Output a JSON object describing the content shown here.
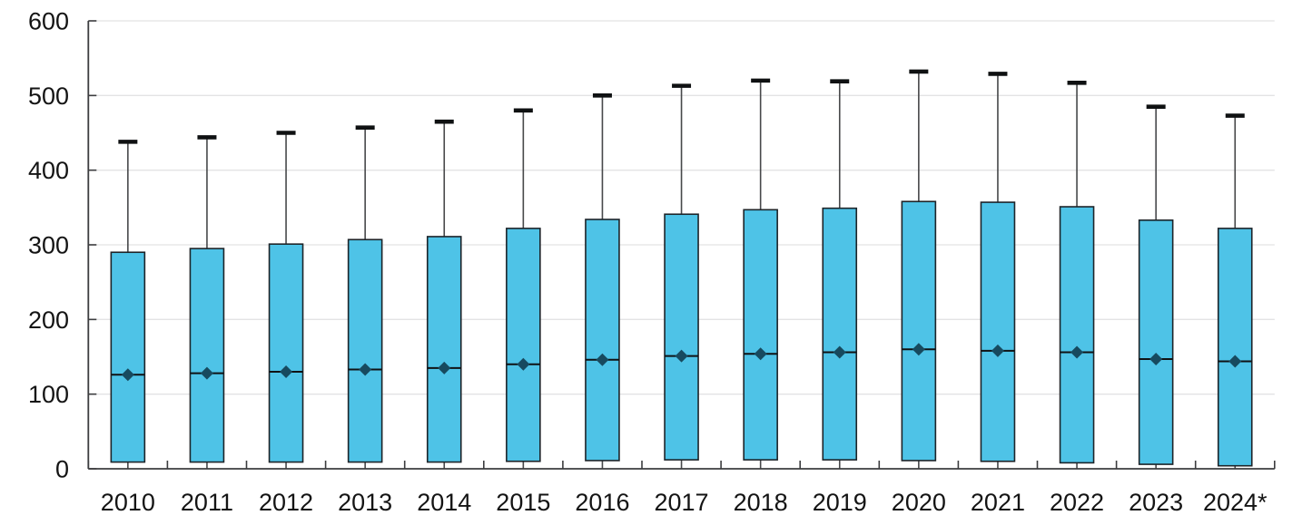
{
  "page": {
    "background": "#ffffff"
  },
  "chart_data": {
    "type": "boxplot",
    "title": "",
    "xlabel": "",
    "ylabel": "",
    "ylim": [
      0,
      600
    ],
    "yticks": [
      0,
      100,
      200,
      300,
      400,
      500,
      600
    ],
    "grid": "horizontal",
    "legend": "none",
    "median_marker": "diamond",
    "categories": [
      "2010",
      "2011",
      "2012",
      "2013",
      "2014",
      "2015",
      "2016",
      "2017",
      "2018",
      "2019",
      "2020",
      "2021",
      "2022",
      "2023",
      "2024*"
    ],
    "points": [
      {
        "category": "2010",
        "min": 0,
        "q1": 9,
        "median": 126,
        "q3": 290,
        "max": 438
      },
      {
        "category": "2011",
        "min": 0,
        "q1": 9,
        "median": 128,
        "q3": 295,
        "max": 444
      },
      {
        "category": "2012",
        "min": 0,
        "q1": 9,
        "median": 130,
        "q3": 301,
        "max": 450
      },
      {
        "category": "2013",
        "min": 0,
        "q1": 9,
        "median": 133,
        "q3": 307,
        "max": 457
      },
      {
        "category": "2014",
        "min": 0,
        "q1": 9,
        "median": 135,
        "q3": 311,
        "max": 465
      },
      {
        "category": "2015",
        "min": 0,
        "q1": 10,
        "median": 140,
        "q3": 322,
        "max": 480
      },
      {
        "category": "2016",
        "min": 0,
        "q1": 11,
        "median": 146,
        "q3": 334,
        "max": 500
      },
      {
        "category": "2017",
        "min": 0,
        "q1": 12,
        "median": 151,
        "q3": 341,
        "max": 513
      },
      {
        "category": "2018",
        "min": 0,
        "q1": 12,
        "median": 154,
        "q3": 347,
        "max": 520
      },
      {
        "category": "2019",
        "min": 0,
        "q1": 12,
        "median": 156,
        "q3": 349,
        "max": 519
      },
      {
        "category": "2020",
        "min": 0,
        "q1": 11,
        "median": 160,
        "q3": 358,
        "max": 532
      },
      {
        "category": "2021",
        "min": 0,
        "q1": 10,
        "median": 158,
        "q3": 357,
        "max": 529
      },
      {
        "category": "2022",
        "min": 0,
        "q1": 8,
        "median": 156,
        "q3": 351,
        "max": 517
      },
      {
        "category": "2023",
        "min": 0,
        "q1": 6,
        "median": 147,
        "q3": 333,
        "max": 485
      },
      {
        "category": "2024*",
        "min": 0,
        "q1": 4,
        "median": 144,
        "q3": 322,
        "max": 473
      }
    ]
  },
  "colors": {
    "box_fill": "#4ec3e7",
    "box_border": "#1d2429",
    "whisker": "#47484a",
    "whisker_cap": "#0f1112",
    "median_line": "#101214",
    "median_diamond": "#174a5f",
    "gridline": "#e3e3e4",
    "axis": "#3c3d3f",
    "tick": "#3c3d3f",
    "label_text": "#141414"
  }
}
